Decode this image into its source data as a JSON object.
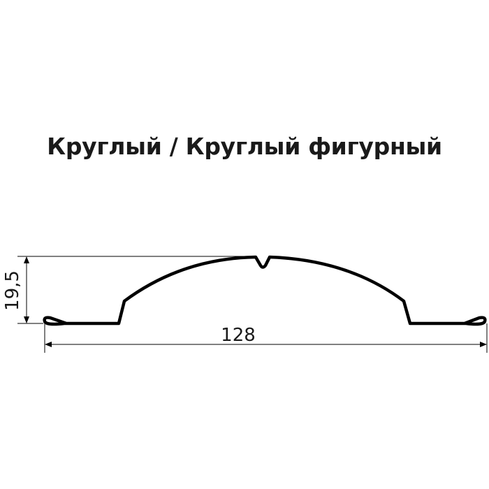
{
  "title": "Круглый / Круглый фигурный",
  "dimensions": {
    "height_label": "19,5",
    "width_label": "128"
  },
  "colors": {
    "stroke": "#000000",
    "text": "#1a1a1a"
  }
}
